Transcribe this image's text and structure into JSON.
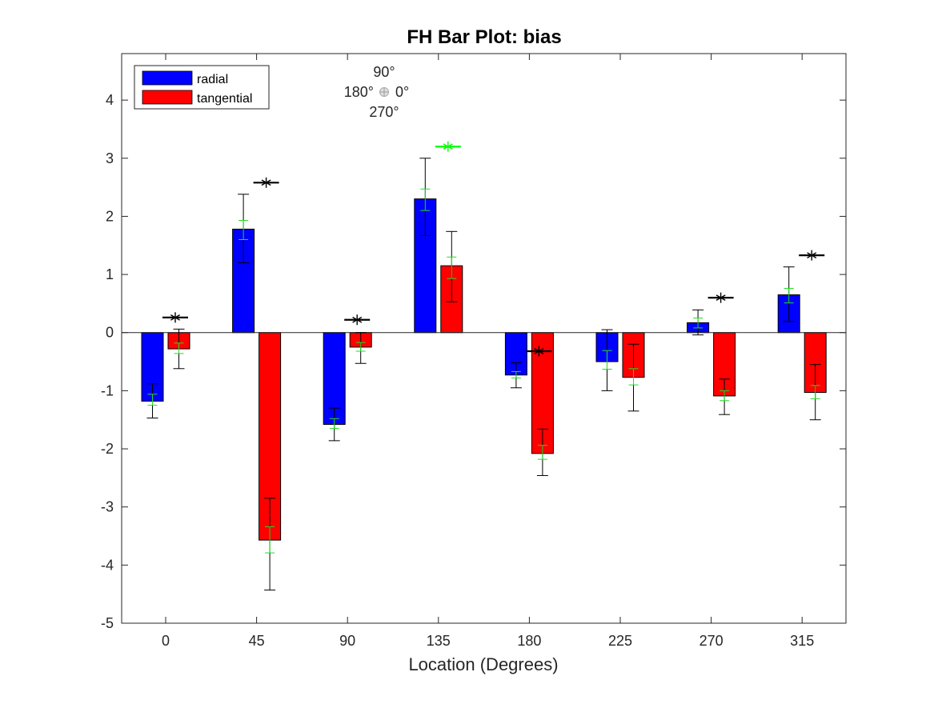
{
  "chart_data": {
    "type": "bar",
    "title": "FH Bar Plot: bias",
    "xlabel": "Location (Degrees)",
    "ylabel": "",
    "ylim": [
      -5,
      4.8
    ],
    "yticks": [
      -5,
      -4,
      -3,
      -2,
      -1,
      0,
      1,
      2,
      3,
      4
    ],
    "categories": [
      "0",
      "45",
      "90",
      "135",
      "180",
      "225",
      "270",
      "315"
    ],
    "legend": {
      "position": "top-left",
      "entries": [
        {
          "name": "radial",
          "color": "#0000ff"
        },
        {
          "name": "tangential",
          "color": "#ff0000"
        }
      ]
    },
    "compass_labels": {
      "top": "90°",
      "left": "180°",
      "right": "0°",
      "bottom": "270°"
    },
    "series": [
      {
        "name": "radial",
        "color": "#0000ff",
        "values": [
          -1.18,
          1.78,
          -1.58,
          2.3,
          -0.73,
          -0.5,
          0.17,
          0.65
        ],
        "error_black": [
          [
            -1.47,
            -0.88
          ],
          [
            1.2,
            2.38
          ],
          [
            -1.86,
            -1.3
          ],
          [
            1.67,
            3.0
          ],
          [
            -0.95,
            -0.52
          ],
          [
            -1.0,
            0.05
          ],
          [
            -0.04,
            0.39
          ],
          [
            0.19,
            1.13
          ]
        ],
        "error_green": [
          [
            -1.25,
            -1.06
          ],
          [
            1.6,
            1.93
          ],
          [
            -1.65,
            -1.48
          ],
          [
            2.1,
            2.47
          ],
          [
            -0.78,
            -0.67
          ],
          [
            -0.63,
            -0.31
          ],
          [
            0.08,
            0.25
          ],
          [
            0.51,
            0.76
          ]
        ]
      },
      {
        "name": "tangential",
        "color": "#ff0000",
        "values": [
          -0.28,
          -3.57,
          -0.25,
          1.15,
          -2.08,
          -0.77,
          -1.09,
          -1.03
        ],
        "error_black": [
          [
            -0.62,
            0.06
          ],
          [
            -4.43,
            -2.85
          ],
          [
            -0.53,
            0.0
          ],
          [
            0.53,
            1.74
          ],
          [
            -2.46,
            -1.66
          ],
          [
            -1.35,
            -0.2
          ],
          [
            -1.41,
            -0.8
          ],
          [
            -1.5,
            -0.55
          ]
        ],
        "error_green": [
          [
            -0.36,
            -0.18
          ],
          [
            -3.79,
            -3.34
          ],
          [
            -0.32,
            -0.17
          ],
          [
            0.93,
            1.3
          ],
          [
            -2.18,
            -1.94
          ],
          [
            -0.9,
            -0.62
          ],
          [
            -1.17,
            -1.0
          ],
          [
            -1.14,
            -0.91
          ]
        ]
      }
    ],
    "star_markers": [
      {
        "category": "0",
        "value": 0.26,
        "color": "#000000"
      },
      {
        "category": "45",
        "value": 2.58,
        "color": "#000000"
      },
      {
        "category": "90",
        "value": 0.22,
        "color": "#000000"
      },
      {
        "category": "135",
        "value": 3.2,
        "color": "#00ff00"
      },
      {
        "category": "180",
        "value": -0.32,
        "color": "#000000"
      },
      {
        "category": "270",
        "value": 0.6,
        "color": "#000000"
      },
      {
        "category": "315",
        "value": 1.33,
        "color": "#000000"
      }
    ]
  }
}
